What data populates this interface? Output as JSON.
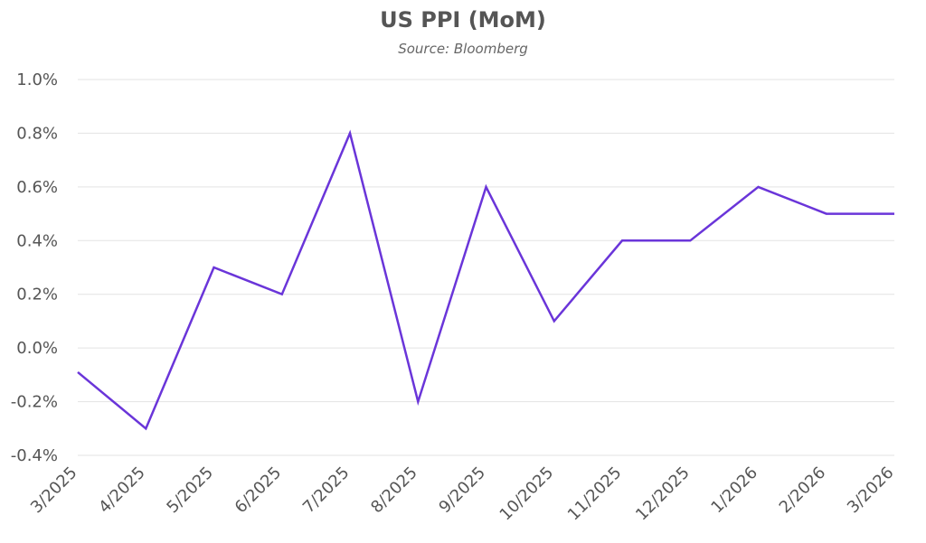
{
  "chart_data": {
    "type": "line",
    "title": "US PPI (MoM)",
    "subtitle": "Source: Bloomberg",
    "xlabel": "",
    "ylabel": "",
    "categories": [
      "3/2025",
      "4/2025",
      "5/2025",
      "6/2025",
      "7/2025",
      "8/2025",
      "9/2025",
      "10/2025",
      "11/2025",
      "12/2025",
      "1/2026",
      "2/2026",
      "3/2026"
    ],
    "series": [
      {
        "values": [
          -0.09,
          -0.3,
          0.3,
          0.2,
          0.8,
          -0.2,
          0.6,
          0.1,
          0.4,
          0.4,
          0.6,
          0.5,
          0.5
        ]
      }
    ],
    "ylim": [
      -0.4,
      1.0
    ],
    "yticks": [
      -0.4,
      -0.2,
      0.0,
      0.2,
      0.4,
      0.6,
      0.8,
      1.0
    ],
    "ytick_labels": [
      "-0.4%",
      "-0.2%",
      "0.0%",
      "0.2%",
      "0.4%",
      "0.6%",
      "0.8%",
      "1.0%"
    ],
    "grid": "horizontal",
    "legend": "none",
    "colors": {
      "line": "#6a35d9",
      "grid": "#e3e3e3",
      "text": "#555555"
    }
  }
}
